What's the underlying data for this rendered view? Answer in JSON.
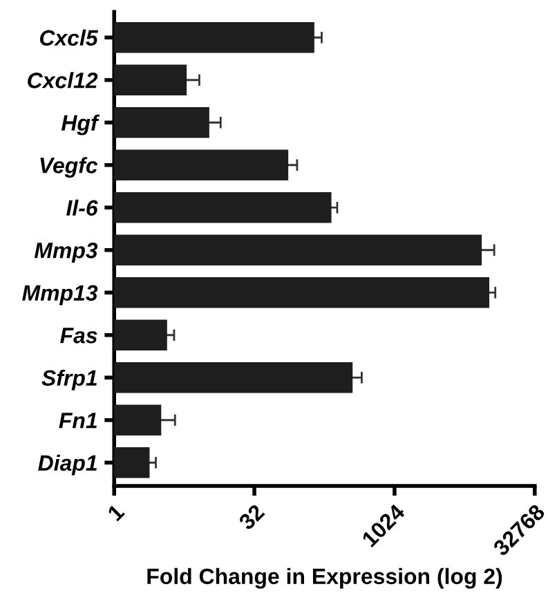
{
  "chart_data": {
    "type": "bar",
    "orientation": "horizontal",
    "log": "x",
    "categories": [
      "Cxcl5",
      "Cxcl12",
      "Hgf",
      "Vegfc",
      "Il-6",
      "Mmp3",
      "Mmp13",
      "Fas",
      "Sfrp1",
      "Fn1",
      "Diap1"
    ],
    "values": [
      141,
      6.0,
      10.5,
      74,
      215,
      8840,
      10660,
      3.7,
      363,
      3.2,
      2.4
    ],
    "errors": [
      28,
      2.2,
      3.4,
      18,
      33,
      3200,
      1700,
      0.7,
      92,
      1.3,
      0.4
    ],
    "color": "#1e1e1e",
    "xlabel": "Fold Change in Expression (log 2)",
    "xlim": [
      1,
      32768
    ],
    "xticks": [
      1,
      32,
      1024,
      32768
    ],
    "grid": false,
    "legend": false
  }
}
